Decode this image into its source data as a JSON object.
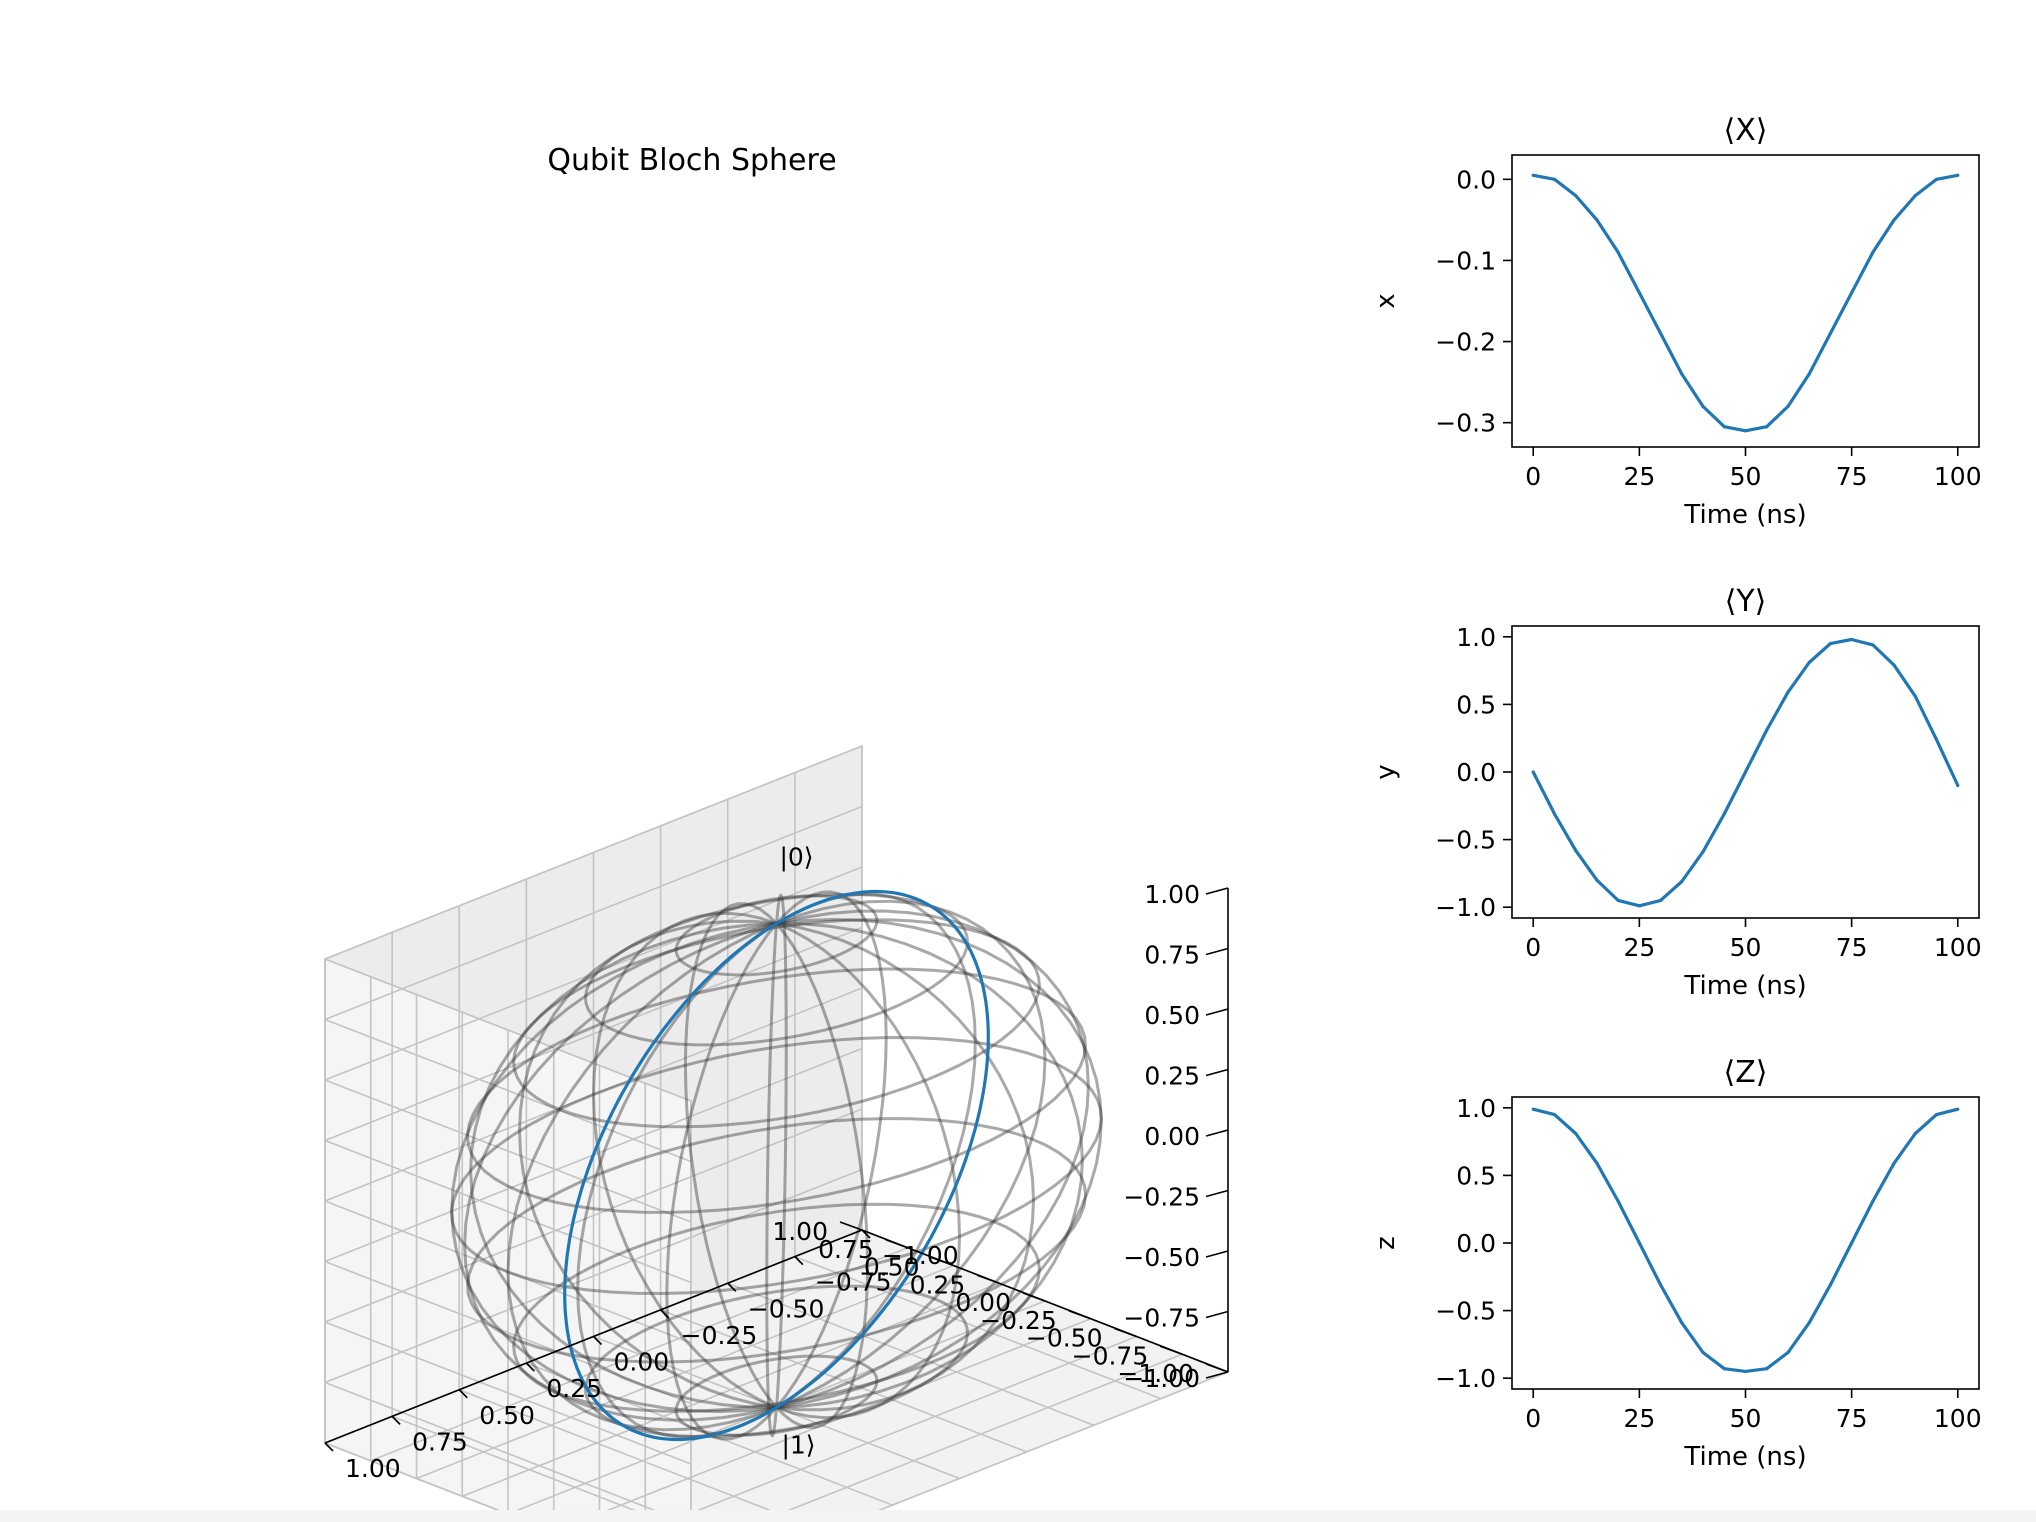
{
  "chart_data": [
    {
      "type": "scatter",
      "projection": "3d",
      "title": "Qubit Bloch Sphere",
      "xlim": [
        -1,
        1
      ],
      "ylim": [
        -1,
        1
      ],
      "zlim": [
        -1,
        1
      ],
      "ticks": [
        -1.0,
        -0.75,
        -0.5,
        -0.25,
        0.0,
        0.25,
        0.5,
        0.75,
        1.0
      ],
      "tick_labels": [
        "−1.00",
        "−0.75",
        "−0.50",
        "−0.25",
        "0.00",
        "0.25",
        "0.50",
        "0.75",
        "1.00"
      ],
      "annotations": [
        "|0⟩",
        "|1⟩"
      ],
      "grid": true,
      "sphere_color": "#333333",
      "trajectory_color": "#1f77b4"
    },
    {
      "type": "line",
      "title": "⟨X⟩",
      "xlabel": "Time (ns)",
      "ylabel": "x",
      "xlim": [
        -5,
        105
      ],
      "ylim": [
        -0.33,
        0.03
      ],
      "xticks": [
        0,
        25,
        50,
        75,
        100
      ],
      "xtick_labels": [
        "0",
        "25",
        "50",
        "75",
        "100"
      ],
      "yticks": [
        0.0,
        -0.1,
        -0.2,
        -0.3
      ],
      "ytick_labels": [
        "0.0",
        "−0.1",
        "−0.2",
        "−0.3"
      ],
      "series": [
        {
          "x": [
            0,
            5,
            10,
            15,
            20,
            25,
            30,
            35,
            40,
            45,
            50,
            55,
            60,
            65,
            70,
            75,
            80,
            85,
            90,
            95,
            100
          ],
          "y": [
            0.005,
            0.0,
            -0.02,
            -0.05,
            -0.09,
            -0.14,
            -0.19,
            -0.24,
            -0.28,
            -0.305,
            -0.31,
            -0.305,
            -0.28,
            -0.24,
            -0.19,
            -0.14,
            -0.09,
            -0.05,
            -0.02,
            0.0,
            0.005
          ],
          "color": "#1f77b4"
        }
      ]
    },
    {
      "type": "line",
      "title": "⟨Y⟩",
      "xlabel": "Time (ns)",
      "ylabel": "y",
      "xlim": [
        -5,
        105
      ],
      "ylim": [
        -1.08,
        1.08
      ],
      "xticks": [
        0,
        25,
        50,
        75,
        100
      ],
      "xtick_labels": [
        "0",
        "25",
        "50",
        "75",
        "100"
      ],
      "yticks": [
        1.0,
        0.5,
        0.0,
        -0.5,
        -1.0
      ],
      "ytick_labels": [
        "1.0",
        "0.5",
        "0.0",
        "−0.5",
        "−1.0"
      ],
      "series": [
        {
          "x": [
            0,
            5,
            10,
            15,
            20,
            25,
            30,
            35,
            40,
            45,
            50,
            55,
            60,
            65,
            70,
            75,
            80,
            85,
            90,
            95,
            100
          ],
          "y": [
            0.0,
            -0.31,
            -0.58,
            -0.8,
            -0.95,
            -0.99,
            -0.95,
            -0.81,
            -0.59,
            -0.31,
            0.0,
            0.31,
            0.59,
            0.81,
            0.95,
            0.98,
            0.94,
            0.79,
            0.56,
            0.24,
            -0.1
          ],
          "color": "#1f77b4"
        }
      ]
    },
    {
      "type": "line",
      "title": "⟨Z⟩",
      "xlabel": "Time (ns)",
      "ylabel": "z",
      "xlim": [
        -5,
        105
      ],
      "ylim": [
        -1.08,
        1.08
      ],
      "xticks": [
        0,
        25,
        50,
        75,
        100
      ],
      "xtick_labels": [
        "0",
        "25",
        "50",
        "75",
        "100"
      ],
      "yticks": [
        1.0,
        0.5,
        0.0,
        -0.5,
        -1.0
      ],
      "ytick_labels": [
        "1.0",
        "0.5",
        "0.0",
        "−0.5",
        "−1.0"
      ],
      "series": [
        {
          "x": [
            0,
            5,
            10,
            15,
            20,
            25,
            30,
            35,
            40,
            45,
            50,
            55,
            60,
            65,
            70,
            75,
            80,
            85,
            90,
            95,
            100
          ],
          "y": [
            0.99,
            0.95,
            0.81,
            0.59,
            0.31,
            0.0,
            -0.31,
            -0.59,
            -0.81,
            -0.93,
            -0.95,
            -0.93,
            -0.81,
            -0.59,
            -0.31,
            0.0,
            0.31,
            0.59,
            0.81,
            0.95,
            0.99
          ],
          "color": "#1f77b4"
        }
      ]
    }
  ]
}
